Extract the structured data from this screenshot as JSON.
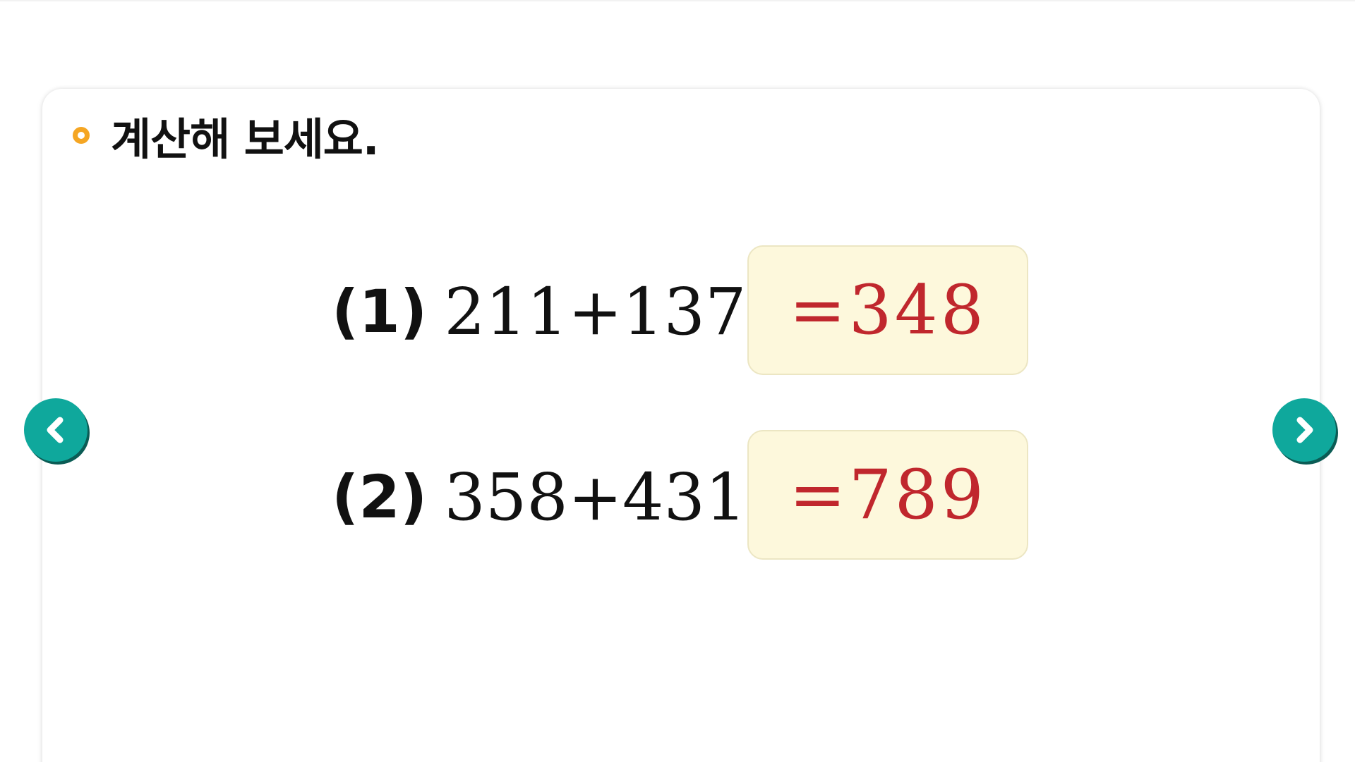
{
  "instruction": {
    "title": "계산해 보세요."
  },
  "problems": [
    {
      "number": "(1)",
      "expression": "211+137",
      "answer": "=348"
    },
    {
      "number": "(2)",
      "expression": "358+431",
      "answer": "=789"
    }
  ],
  "navigation": {
    "prev_icon": "chevron-left-icon",
    "next_icon": "chevron-right-icon"
  },
  "colors": {
    "bullet": "#f5a623",
    "answer_text": "#c0272d",
    "answer_background": "#fdf8dc",
    "nav_button": "#0fa89c"
  }
}
